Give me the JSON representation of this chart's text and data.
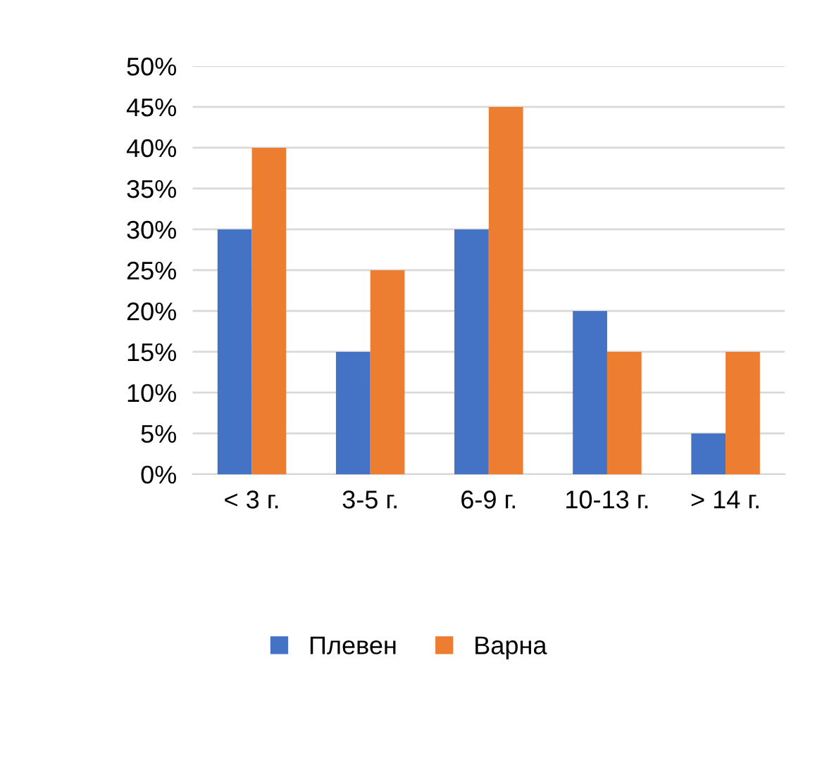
{
  "chart_data": {
    "type": "bar",
    "categories": [
      "< 3 г.",
      "3-5 г.",
      "6-9 г.",
      "10-13 г.",
      "> 14 г."
    ],
    "series": [
      {
        "name": "Плевен",
        "color": "#4472c4",
        "values": [
          30,
          15,
          30,
          20,
          5
        ]
      },
      {
        "name": "Варна",
        "color": "#ed7d31",
        "values": [
          40,
          25,
          45,
          15,
          15
        ]
      }
    ],
    "ylim": [
      0,
      50
    ],
    "yticks": [
      {
        "value": 0,
        "label": "0%"
      },
      {
        "value": 5,
        "label": "5%"
      },
      {
        "value": 10,
        "label": "10%"
      },
      {
        "value": 15,
        "label": "15%"
      },
      {
        "value": 20,
        "label": "20%"
      },
      {
        "value": 25,
        "label": "25%"
      },
      {
        "value": 30,
        "label": "30%"
      },
      {
        "value": 35,
        "label": "35%"
      },
      {
        "value": 40,
        "label": "40%"
      },
      {
        "value": 45,
        "label": "45%"
      },
      {
        "value": 50,
        "label": "50%"
      }
    ],
    "grid": "y",
    "legend": "bottom"
  }
}
